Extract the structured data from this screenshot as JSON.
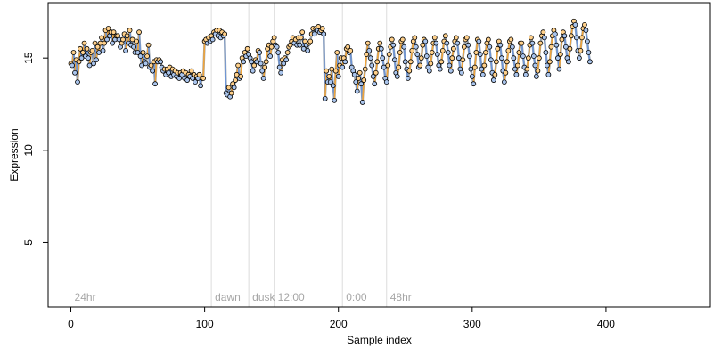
{
  "chart_data": {
    "type": "line",
    "xlabel": "Sample index",
    "ylabel": "Expression",
    "xlim": [
      -17,
      478
    ],
    "ylim": [
      1.5,
      18.0
    ],
    "x_ticks": [
      0,
      100,
      200,
      300,
      400
    ],
    "y_ticks": [
      5,
      10,
      15
    ],
    "grid": false,
    "legend": "none",
    "colors": {
      "trace": "#9aa3ad",
      "light_segment": "#f0a43a",
      "dark_segment": "#6d95d6",
      "point_light": "#ffd08a",
      "point_dark": "#a9c4ec",
      "point_outline": "#000000",
      "divider": "#dcdcdc",
      "phase_label": "#a6a6a6"
    },
    "phases": [
      {
        "label": "24hr",
        "start": 0
      },
      {
        "label": "dawn",
        "start": 105
      },
      {
        "label": "dusk",
        "start": 133
      },
      {
        "label": "12:00",
        "start": 152
      },
      {
        "label": "0:00",
        "start": 203
      },
      {
        "label": "48hr",
        "start": 236
      }
    ],
    "series": [
      {
        "values": [
          14.7,
          14.6,
          15.3,
          14.2,
          14.9,
          13.7,
          14.8,
          15.5,
          15.0,
          15.3,
          15.8,
          15.1,
          15.5,
          15.0,
          14.6,
          15.3,
          15.4,
          14.7,
          15.8,
          14.9,
          15.6,
          15.3,
          15.8,
          16.1,
          15.4,
          15.8,
          16.5,
          16.0,
          16.6,
          16.2,
          16.4,
          15.8,
          16.4,
          16.0,
          16.2,
          16.2,
          16.0,
          15.6,
          15.8,
          16.0,
          16.3,
          15.4,
          16.2,
          15.8,
          16.5,
          15.7,
          16.0,
          15.6,
          15.3,
          15.9,
          15.3,
          16.4,
          15.1,
          14.6,
          15.3,
          14.8,
          14.7,
          15.1,
          15.7,
          14.5,
          14.6,
          14.3,
          14.8,
          13.6,
          14.9,
          14.8,
          14.9,
          14.8,
          14.5,
          14.3,
          14.4,
          14.1,
          14.4,
          14.2,
          14.5,
          14.0,
          14.4,
          14.1,
          14.3,
          14.0,
          14.2,
          13.9,
          14.2,
          14.1,
          14.3,
          13.9,
          14.2,
          13.8,
          14.1,
          14.0,
          14.3,
          13.9,
          14.1,
          13.7,
          14.0,
          13.9,
          14.1,
          13.5,
          13.9,
          13.9,
          15.9,
          16.0,
          15.8,
          16.1,
          15.9,
          16.2,
          16.0,
          16.4,
          16.3,
          16.5,
          16.2,
          16.5,
          16.1,
          16.4,
          16.2,
          16.3,
          13.1,
          13.0,
          13.4,
          12.9,
          13.1,
          13.6,
          13.4,
          13.8,
          14.1,
          14.6,
          13.9,
          14.0,
          15.0,
          14.8,
          15.3,
          15.1,
          15.5,
          15.2,
          15.0,
          14.8,
          14.3,
          14.6,
          14.9,
          14.8,
          15.4,
          15.3,
          14.7,
          14.3,
          13.9,
          14.5,
          14.8,
          15.5,
          15.7,
          15.1,
          15.6,
          15.9,
          16.1,
          15.7,
          15.6,
          15.3,
          14.5,
          14.2,
          14.9,
          14.7,
          15.0,
          14.9,
          15.3,
          15.6,
          15.7,
          15.9,
          16.1,
          15.8,
          16.0,
          15.7,
          16.1,
          15.7,
          16.1,
          16.4,
          15.5,
          15.9,
          15.7,
          15.4,
          15.8,
          15.9,
          16.3,
          16.6,
          16.3,
          16.6,
          16.5,
          16.7,
          16.4,
          16.5,
          16.6,
          16.3,
          12.8,
          14.3,
          13.7,
          14.0,
          13.7,
          14.4,
          13.5,
          12.7,
          14.3,
          15.3,
          14.0,
          14.6,
          15.0,
          14.5,
          15.0,
          14.8,
          15.5,
          15.6,
          15.3,
          15.4,
          14.5,
          14.3,
          14.1,
          13.7,
          13.2,
          13.9,
          14.2,
          13.6,
          12.6,
          13.8,
          14.4,
          15.2,
          15.8,
          15.4,
          15.0,
          14.6,
          14.0,
          13.6,
          14.2,
          14.8,
          15.5,
          15.8,
          15.5,
          15.0,
          14.5,
          13.9,
          13.7,
          14.6,
          15.2,
          15.6,
          16.0,
          15.7,
          14.9,
          14.2,
          14.0,
          14.5,
          15.3,
          15.9,
          16.0,
          15.6,
          14.8,
          14.4,
          13.9,
          14.3,
          14.8,
          15.4,
          15.9,
          16.1,
          15.6,
          15.2,
          14.5,
          14.6,
          15.0,
          15.7,
          16.0,
          15.9,
          15.1,
          14.5,
          14.3,
          14.7,
          15.3,
          15.8,
          16.1,
          15.8,
          15.2,
          14.6,
          14.4,
          14.8,
          15.4,
          15.9,
          16.2,
          15.8,
          15.3,
          14.6,
          14.3,
          15.0,
          15.5,
          15.9,
          16.1,
          15.8,
          15.0,
          14.4,
          14.2,
          14.9,
          15.6,
          16.0,
          16.1,
          15.7,
          15.1,
          14.4,
          14.0,
          13.6,
          14.5,
          15.3,
          16.0,
          15.9,
          15.2,
          14.4,
          14.1,
          14.6,
          15.3,
          15.8,
          16.0,
          15.6,
          14.9,
          14.2,
          13.8,
          14.1,
          14.8,
          15.5,
          15.9,
          15.7,
          15.0,
          14.3,
          13.7,
          14.2,
          14.8,
          15.4,
          15.9,
          16.0,
          15.6,
          15.0,
          14.4,
          14.1,
          14.6,
          15.3,
          15.8,
          15.8,
          15.1,
          14.5,
          14.1,
          14.4,
          15.0,
          15.7,
          16.1,
          15.8,
          15.1,
          14.6,
          14.0,
          14.3,
          15.0,
          15.8,
          16.2,
          16.4,
          16.1,
          15.3,
          14.6,
          14.1,
          14.8,
          15.6,
          16.2,
          16.5,
          16.3,
          15.7,
          15.0,
          14.4,
          15.2,
          16.0,
          16.4,
          16.2,
          15.6,
          15.0,
          14.8,
          15.5,
          16.2,
          16.7,
          17.0,
          16.8,
          16.1,
          15.4,
          15.0,
          15.4,
          16.1,
          16.6,
          16.8,
          16.5,
          15.9,
          15.3,
          14.8
        ]
      }
    ]
  }
}
